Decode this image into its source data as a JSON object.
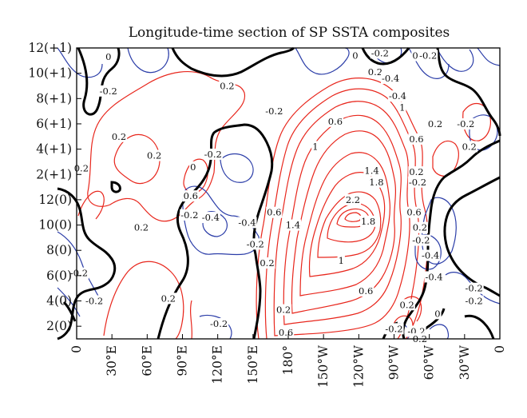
{
  "chart_data": {
    "type": "contour",
    "title": "Longitude-time section of SP SSTA composites",
    "xlabel": "",
    "ylabel": "",
    "x_ticks": [
      "0",
      "30°E",
      "60°E",
      "90°E",
      "120°E",
      "150°E",
      "180°",
      "150°W",
      "120°W",
      "90°W",
      "60°W",
      "30°W",
      "0"
    ],
    "y_ticks": [
      "2(0)",
      "4(0)",
      "6(0)",
      "8(0)",
      "10(0)",
      "12(0)",
      "2(+1)",
      "4(+1)",
      "6(+1)",
      "8(+1)",
      "10(+1)",
      "12(+1)"
    ],
    "x_domain_deg_east": [
      0,
      360
    ],
    "y_domain_months": [
      1,
      24
    ],
    "grid": false,
    "legend": "none",
    "colors": {
      "positive": "#e8261c",
      "negative": "#2b3da8",
      "zero": "#000000"
    },
    "contour_labels": [
      {
        "text": "0",
        "lon": 27,
        "month": 23.3,
        "sign": "zero"
      },
      {
        "text": "-0.2",
        "lon": 27,
        "month": 20.6,
        "sign": "neg"
      },
      {
        "text": "0.2",
        "lon": 36,
        "month": 17.0,
        "sign": "pos"
      },
      {
        "text": "0.2",
        "lon": 4,
        "month": 14.5,
        "sign": "pos"
      },
      {
        "text": "0.2",
        "lon": 66,
        "month": 15.5,
        "sign": "pos"
      },
      {
        "text": "0.2",
        "lon": 128,
        "month": 21.0,
        "sign": "pos"
      },
      {
        "text": "0",
        "lon": 99,
        "month": 14.6,
        "sign": "zero"
      },
      {
        "text": "0.6",
        "lon": 97,
        "month": 12.3,
        "sign": "pos"
      },
      {
        "text": "0.2",
        "lon": 55,
        "month": 9.8,
        "sign": "pos"
      },
      {
        "text": "0.2",
        "lon": 78,
        "month": 4.2,
        "sign": "pos"
      },
      {
        "text": "-0.2",
        "lon": 2,
        "month": 6.2,
        "sign": "neg"
      },
      {
        "text": "-0.2",
        "lon": 15,
        "month": 4.0,
        "sign": "neg"
      },
      {
        "text": "-0.2",
        "lon": 96,
        "month": 10.8,
        "sign": "neg"
      },
      {
        "text": "-0.4",
        "lon": 114,
        "month": 10.6,
        "sign": "neg"
      },
      {
        "text": "-0.2",
        "lon": 116,
        "month": 15.6,
        "sign": "neg"
      },
      {
        "text": "-0.2",
        "lon": 121,
        "month": 2.2,
        "sign": "neg"
      },
      {
        "text": "-0.4",
        "lon": 145,
        "month": 10.2,
        "sign": "neg"
      },
      {
        "text": "-0.2",
        "lon": 152,
        "month": 8.5,
        "sign": "neg"
      },
      {
        "text": "-0.2",
        "lon": 168,
        "month": 19.0,
        "sign": "neg"
      },
      {
        "text": "0.6",
        "lon": 168,
        "month": 11.0,
        "sign": "pos"
      },
      {
        "text": "0.2",
        "lon": 162,
        "month": 7.0,
        "sign": "pos"
      },
      {
        "text": "0.2",
        "lon": 176,
        "month": 3.3,
        "sign": "pos"
      },
      {
        "text": "0.6",
        "lon": 178,
        "month": 1.5,
        "sign": "pos"
      },
      {
        "text": "1.4",
        "lon": 184,
        "month": 10.0,
        "sign": "pos"
      },
      {
        "text": "1",
        "lon": 203,
        "month": 16.2,
        "sign": "pos"
      },
      {
        "text": "0.6",
        "lon": 220,
        "month": 18.2,
        "sign": "pos"
      },
      {
        "text": "1",
        "lon": 277,
        "month": 19.3,
        "sign": "pos"
      },
      {
        "text": "1.4",
        "lon": 251,
        "month": 14.3,
        "sign": "pos"
      },
      {
        "text": "1.8",
        "lon": 255,
        "month": 13.4,
        "sign": "pos"
      },
      {
        "text": "2.2",
        "lon": 235,
        "month": 12.0,
        "sign": "pos"
      },
      {
        "text": "1.8",
        "lon": 248,
        "month": 10.3,
        "sign": "pos"
      },
      {
        "text": "1",
        "lon": 225,
        "month": 7.2,
        "sign": "pos"
      },
      {
        "text": "0.6",
        "lon": 246,
        "month": 4.8,
        "sign": "pos"
      },
      {
        "text": "0.2",
        "lon": 254,
        "month": 22.1,
        "sign": "pos"
      },
      {
        "text": "0",
        "lon": 237,
        "month": 23.4,
        "sign": "zero"
      },
      {
        "text": "-0.2",
        "lon": 258,
        "month": 23.6,
        "sign": "neg"
      },
      {
        "text": "0",
        "lon": 288,
        "month": 23.4,
        "sign": "zero"
      },
      {
        "text": "-0.2",
        "lon": 299,
        "month": 23.4,
        "sign": "neg"
      },
      {
        "text": "-0.4",
        "lon": 267,
        "month": 21.6,
        "sign": "neg"
      },
      {
        "text": "-0.4",
        "lon": 273,
        "month": 20.2,
        "sign": "neg"
      },
      {
        "text": "0.6",
        "lon": 289,
        "month": 16.8,
        "sign": "pos"
      },
      {
        "text": "0.2",
        "lon": 305,
        "month": 18.0,
        "sign": "pos"
      },
      {
        "text": "-0.2",
        "lon": 331,
        "month": 18.0,
        "sign": "neg"
      },
      {
        "text": "0.2",
        "lon": 334,
        "month": 16.2,
        "sign": "pos"
      },
      {
        "text": "0.2",
        "lon": 289,
        "month": 14.2,
        "sign": "pos"
      },
      {
        "text": "-0.2",
        "lon": 290,
        "month": 13.4,
        "sign": "neg"
      },
      {
        "text": "0.6",
        "lon": 287,
        "month": 11.0,
        "sign": "pos"
      },
      {
        "text": "0.2",
        "lon": 292,
        "month": 9.8,
        "sign": "pos"
      },
      {
        "text": "-0.2",
        "lon": 293,
        "month": 8.8,
        "sign": "neg"
      },
      {
        "text": "-0.4",
        "lon": 301,
        "month": 7.6,
        "sign": "neg"
      },
      {
        "text": "-0.4",
        "lon": 304,
        "month": 5.9,
        "sign": "neg"
      },
      {
        "text": "0",
        "lon": 307,
        "month": 3.0,
        "sign": "zero"
      },
      {
        "text": "-0.2",
        "lon": 338,
        "month": 5.0,
        "sign": "neg"
      },
      {
        "text": "-0.2",
        "lon": 338,
        "month": 4.0,
        "sign": "neg"
      },
      {
        "text": "0.2",
        "lon": 281,
        "month": 3.7,
        "sign": "pos"
      },
      {
        "text": "-0.2",
        "lon": 270,
        "month": 1.8,
        "sign": "neg"
      },
      {
        "text": "-0.2",
        "lon": 289,
        "month": 1.6,
        "sign": "neg"
      },
      {
        "text": "0.2",
        "lon": 292,
        "month": 1.0,
        "sign": "pos"
      }
    ]
  }
}
